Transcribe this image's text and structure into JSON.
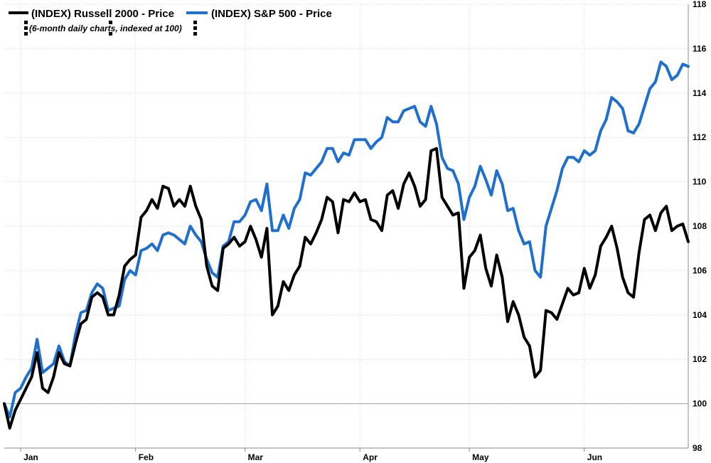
{
  "chart_data": {
    "type": "line",
    "subtitle": "(6-month daily charts, indexed at 100)",
    "ylim": [
      98,
      118
    ],
    "y_ticks": [
      98,
      100,
      102,
      104,
      106,
      108,
      110,
      112,
      114,
      116,
      118
    ],
    "y_axis_side": "right",
    "x_labels": [
      {
        "label": "Jan",
        "day": 3
      },
      {
        "label": "Feb",
        "day": 24
      },
      {
        "label": "Mar",
        "day": 44
      },
      {
        "label": "Apr",
        "day": 65
      },
      {
        "label": "May",
        "day": 85
      },
      {
        "label": "Jun",
        "day": 106
      }
    ],
    "x_count": 126,
    "baseline": 100,
    "grid": true,
    "legend_position": "top-left",
    "series": [
      {
        "name": "(INDEX) Russell 2000 - Price",
        "color": "#000000",
        "values": [
          100,
          98.9,
          99.7,
          100.2,
          100.7,
          101.2,
          102.3,
          100.7,
          100.5,
          101.2,
          102.3,
          101.8,
          101.7,
          102.7,
          103.6,
          103.8,
          104.8,
          105.0,
          104.8,
          104.0,
          104.0,
          104.9,
          106.2,
          106.5,
          106.7,
          108.4,
          108.7,
          109.2,
          108.8,
          109.8,
          109.7,
          108.9,
          109.2,
          108.9,
          109.8,
          108.9,
          108.3,
          106.2,
          105.3,
          105.1,
          107.0,
          107.2,
          107.5,
          107.1,
          107.3,
          108.0,
          107.4,
          106.6,
          107.9,
          104.0,
          104.4,
          105.5,
          105.1,
          105.8,
          106.2,
          107.5,
          107.2,
          107.7,
          108.3,
          109.3,
          109.1,
          107.7,
          109.2,
          109.1,
          109.5,
          109.1,
          109.2,
          108.3,
          108.2,
          107.8,
          109.4,
          109.6,
          108.8,
          109.9,
          110.4,
          109.8,
          108.9,
          109.2,
          111.4,
          111.5,
          109.3,
          108.9,
          108.5,
          108.6,
          105.2,
          106.6,
          106.9,
          107.6,
          106.1,
          105.3,
          106.7,
          105.7,
          103.7,
          104.6,
          104.0,
          103.0,
          102.6,
          101.2,
          101.5,
          104.2,
          104.1,
          103.8,
          104.5,
          105.2,
          104.9,
          105.0,
          106.1,
          105.2,
          105.8,
          107.1,
          107.5,
          108.0,
          107.0,
          105.7,
          105.0,
          104.8,
          106.8,
          108.3,
          108.5,
          107.8,
          108.6,
          108.9,
          107.8,
          108.0,
          108.1,
          107.3
        ]
      },
      {
        "name": "(INDEX) S&P 500 - Price",
        "color": "#1f6fcf",
        "values": [
          100,
          99.4,
          100.5,
          100.7,
          101.2,
          101.6,
          102.9,
          101.4,
          101.6,
          101.8,
          102.6,
          101.9,
          101.7,
          103.1,
          104.1,
          104.2,
          105.0,
          105.4,
          105.2,
          104.2,
          104.3,
          104.4,
          105.6,
          106.0,
          105.8,
          106.9,
          107.0,
          107.2,
          106.9,
          107.6,
          107.7,
          107.6,
          107.4,
          107.2,
          108.0,
          107.6,
          107.3,
          106.5,
          105.9,
          105.7,
          107.1,
          107.3,
          108.2,
          108.2,
          108.5,
          109.1,
          109.2,
          108.7,
          109.9,
          107.8,
          107.8,
          108.5,
          107.9,
          108.8,
          109.2,
          110.4,
          110.3,
          110.6,
          110.9,
          111.5,
          111.5,
          110.9,
          111.3,
          111.2,
          111.9,
          111.9,
          111.9,
          111.5,
          111.8,
          112.0,
          112.9,
          112.7,
          112.7,
          113.2,
          113.3,
          113.4,
          112.7,
          112.5,
          113.4,
          112.6,
          111.1,
          110.6,
          110.5,
          109.9,
          108.3,
          109.3,
          109.8,
          110.7,
          110.1,
          109.4,
          110.5,
          109.9,
          108.7,
          108.8,
          107.8,
          107.2,
          107.3,
          106.0,
          105.7,
          108.0,
          108.8,
          109.6,
          110.6,
          111.1,
          111.1,
          110.9,
          111.4,
          111.2,
          111.4,
          112.3,
          112.8,
          113.8,
          113.6,
          113.3,
          112.3,
          112.2,
          112.6,
          113.4,
          114.2,
          114.5,
          115.4,
          115.2,
          114.6,
          114.8,
          115.3,
          115.2
        ]
      }
    ]
  }
}
